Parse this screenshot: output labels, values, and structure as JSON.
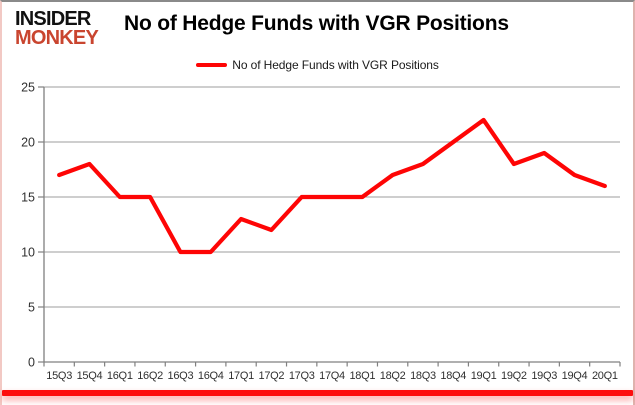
{
  "logo": {
    "line1": "INSIDER",
    "line2": "MONKEY",
    "line2_color": "#C9452F"
  },
  "title": "No of Hedge Funds with VGR Positions",
  "legend": {
    "label": "No of Hedge Funds with VGR Positions",
    "marker_color": "#FE0505"
  },
  "chart_data": {
    "type": "line",
    "title": "No of Hedge Funds with VGR Positions",
    "categories": [
      "15Q3",
      "15Q4",
      "16Q1",
      "16Q2",
      "16Q3",
      "16Q4",
      "17Q1",
      "17Q2",
      "17Q3",
      "17Q4",
      "18Q1",
      "18Q2",
      "18Q3",
      "18Q4",
      "19Q1",
      "19Q2",
      "19Q3",
      "19Q4",
      "20Q1"
    ],
    "series": [
      {
        "name": "No of Hedge Funds with VGR Positions",
        "color": "#FE0505",
        "values": [
          17,
          18,
          15,
          15,
          10,
          10,
          13,
          12,
          15,
          15,
          15,
          17,
          18,
          20,
          22,
          18,
          19,
          17,
          16
        ]
      }
    ],
    "xlabel": "",
    "ylabel": "",
    "ylim": [
      0,
      25
    ],
    "yticks": [
      0,
      5,
      10,
      15,
      20,
      25
    ],
    "grid": true,
    "legend_position": "top-center",
    "colors": {
      "gridline": "#9e9e9e",
      "axis": "#808080",
      "tick_label": "#303030",
      "accent_bar": "#FD0D0D"
    }
  }
}
